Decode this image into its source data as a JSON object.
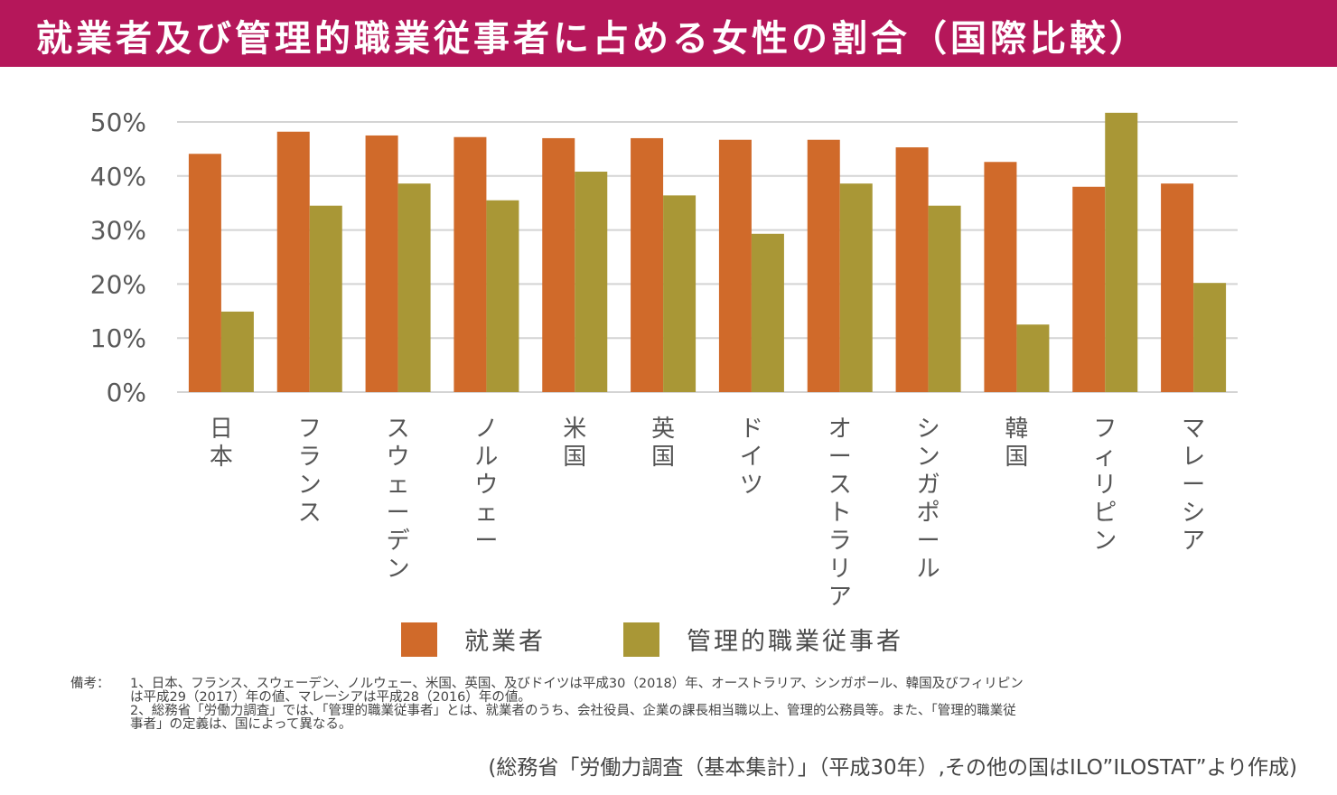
{
  "header": {
    "title": "就業者及び管理的職業従事者に占める女性の割合（国際比較）",
    "banner_color": "#b5175a"
  },
  "chart_data": {
    "type": "bar",
    "title": "就業者及び管理的職業従事者に占める女性の割合（国際比較）",
    "xlabel": "",
    "ylabel": "",
    "ylim": [
      0,
      50
    ],
    "yticks": [
      0,
      10,
      20,
      30,
      40,
      50
    ],
    "ytick_labels": [
      "0%",
      "10%",
      "20%",
      "30%",
      "40%",
      "50%"
    ],
    "grid": true,
    "legend_position": "bottom-center",
    "categories": [
      "日本",
      "フランス",
      "スウェーデン",
      "ノルウェー",
      "米国",
      "英国",
      "ドイツ",
      "オーストラリア",
      "シンガポール",
      "韓国",
      "フィリピン",
      "マレーシア"
    ],
    "series": [
      {
        "name": "就業者",
        "color": "#d06a2a",
        "values": [
          44.1,
          48.2,
          47.5,
          47.2,
          47.0,
          47.0,
          46.7,
          46.7,
          45.3,
          42.6,
          38.0,
          38.6
        ]
      },
      {
        "name": "管理的職業従事者",
        "color": "#a99736",
        "values": [
          14.9,
          34.5,
          38.6,
          35.5,
          40.8,
          36.4,
          29.3,
          38.6,
          34.5,
          12.5,
          51.7,
          20.2
        ]
      }
    ]
  },
  "legend": {
    "items": [
      {
        "label": "就業者",
        "color": "#d06a2a"
      },
      {
        "label": "管理的職業従事者",
        "color": "#a99736"
      }
    ]
  },
  "notes": {
    "heading": "備考：",
    "lines": [
      "1、日本、フランス、スウェーデン、ノルウェー、米国、英国、及びドイツは平成30（2018）年、オーストラリア、シンガポール、韓国及びフィリピン",
      "は平成29（2017）年の値、マレーシアは平成28（2016）年の値。",
      "2、総務省「労働力調査」では、「管理的職業従事者」とは、就業者のうち、会社役員、企業の課長相当職以上、管理的公務員等。また、「管理的職業従",
      "事者」の定義は、国によって異なる。"
    ]
  },
  "source": "(総務省「労働力調査（基本集計）」（平成30年）,その他の国はILO”ILOSTAT”より作成)"
}
